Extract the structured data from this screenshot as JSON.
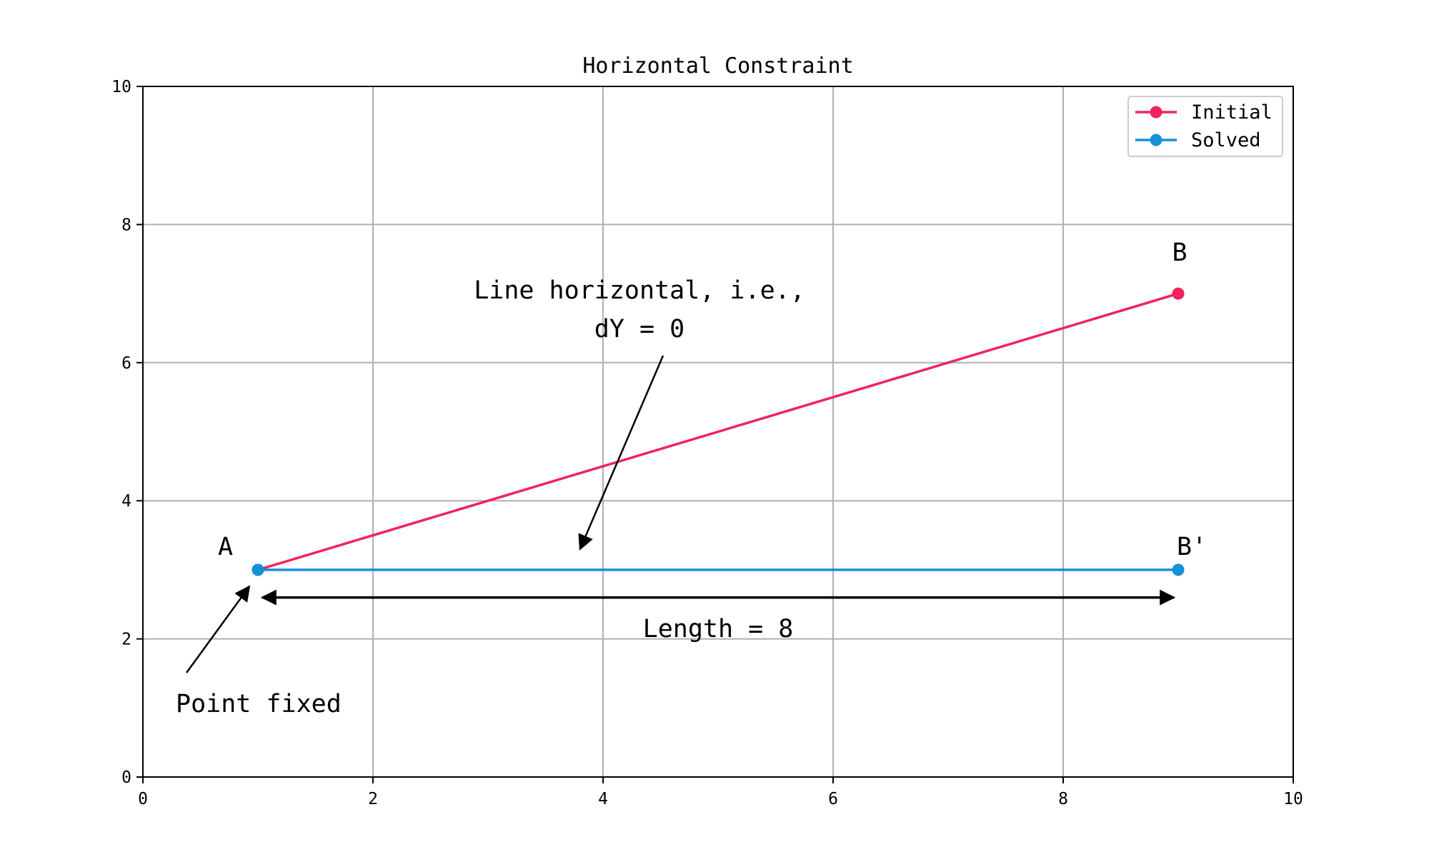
{
  "chart_data": {
    "type": "line",
    "title": "Horizontal Constraint",
    "xlabel": "",
    "ylabel": "",
    "xlim": [
      0,
      10
    ],
    "ylim": [
      0,
      10
    ],
    "xticks": [
      0,
      2,
      4,
      6,
      8,
      10
    ],
    "yticks": [
      0,
      2,
      4,
      6,
      8,
      10
    ],
    "grid": true,
    "legend_position": "top-right",
    "series": [
      {
        "name": "Initial",
        "color": "#f0245c",
        "x": [
          1,
          9
        ],
        "y": [
          3,
          7
        ]
      },
      {
        "name": "Solved",
        "color": "#1592d6",
        "x": [
          1,
          9
        ],
        "y": [
          3,
          3
        ]
      }
    ],
    "annotations": {
      "point_labels": [
        {
          "text": "A",
          "x": 1,
          "y": 3
        },
        {
          "text": "B",
          "x": 9,
          "y": 7
        },
        {
          "text": "B'",
          "x": 9,
          "y": 3
        }
      ],
      "horizontal_note": {
        "lines": [
          "Line horizontal, i.e.,",
          "dY = 0"
        ],
        "target": [
          3.8,
          3.3
        ]
      },
      "fixed_note": {
        "text": "Point fixed",
        "target": [
          0.9,
          2.8
        ]
      },
      "length_label": {
        "text": "Length = 8",
        "from": [
          1,
          2.6
        ],
        "to": [
          9,
          2.6
        ]
      }
    }
  }
}
